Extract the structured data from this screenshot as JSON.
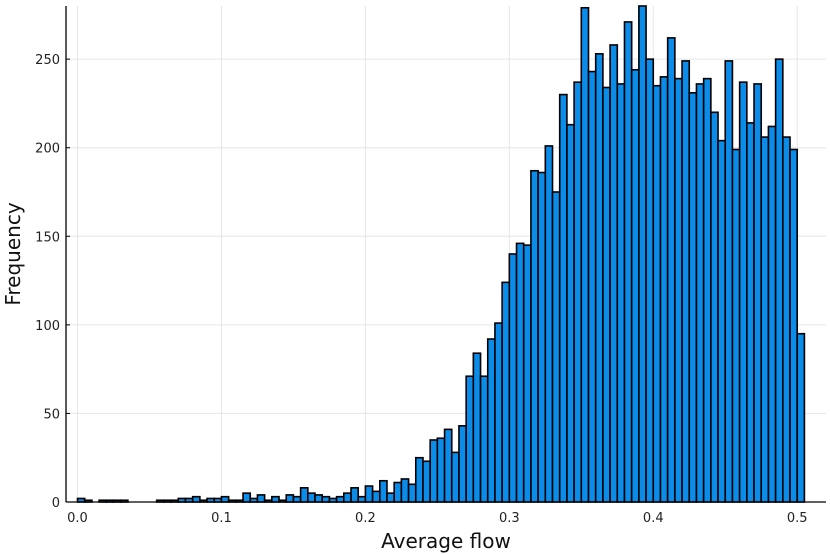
{
  "colors": {
    "bar_fill": "#0b8ce9",
    "bar_edge": "#000000",
    "grid": "#e6e6e6"
  },
  "chart_data": {
    "type": "bar",
    "title": "",
    "xlabel": "Average flow",
    "ylabel": "Frequency",
    "xlim": [
      -0.008,
      0.52
    ],
    "ylim": [
      0,
      280
    ],
    "bin_width": 0.005,
    "grid": true,
    "legend": "none",
    "x_ticks": [
      0.0,
      0.1,
      0.2,
      0.3,
      0.4,
      0.5
    ],
    "x_tick_labels": [
      "0.0",
      "0.1",
      "0.2",
      "0.3",
      "0.4",
      "0.5"
    ],
    "y_ticks": [
      0,
      50,
      100,
      150,
      200,
      250
    ],
    "y_tick_labels": [
      "0",
      "50",
      "100",
      "150",
      "200",
      "250"
    ],
    "bins": [
      {
        "x": 0.0,
        "count": 2
      },
      {
        "x": 0.005,
        "count": 1
      },
      {
        "x": 0.015,
        "count": 1
      },
      {
        "x": 0.02,
        "count": 1
      },
      {
        "x": 0.025,
        "count": 1
      },
      {
        "x": 0.03,
        "count": 1
      },
      {
        "x": 0.055,
        "count": 1
      },
      {
        "x": 0.06,
        "count": 1
      },
      {
        "x": 0.065,
        "count": 1
      },
      {
        "x": 0.07,
        "count": 2
      },
      {
        "x": 0.075,
        "count": 2
      },
      {
        "x": 0.08,
        "count": 3
      },
      {
        "x": 0.085,
        "count": 1
      },
      {
        "x": 0.09,
        "count": 2
      },
      {
        "x": 0.095,
        "count": 2
      },
      {
        "x": 0.1,
        "count": 3
      },
      {
        "x": 0.105,
        "count": 1
      },
      {
        "x": 0.11,
        "count": 1
      },
      {
        "x": 0.115,
        "count": 5
      },
      {
        "x": 0.12,
        "count": 2
      },
      {
        "x": 0.125,
        "count": 4
      },
      {
        "x": 0.13,
        "count": 1
      },
      {
        "x": 0.135,
        "count": 3
      },
      {
        "x": 0.14,
        "count": 1
      },
      {
        "x": 0.145,
        "count": 4
      },
      {
        "x": 0.15,
        "count": 3
      },
      {
        "x": 0.155,
        "count": 8
      },
      {
        "x": 0.16,
        "count": 5
      },
      {
        "x": 0.165,
        "count": 4
      },
      {
        "x": 0.17,
        "count": 3
      },
      {
        "x": 0.175,
        "count": 2
      },
      {
        "x": 0.18,
        "count": 3
      },
      {
        "x": 0.185,
        "count": 5
      },
      {
        "x": 0.19,
        "count": 8
      },
      {
        "x": 0.195,
        "count": 3
      },
      {
        "x": 0.2,
        "count": 9
      },
      {
        "x": 0.205,
        "count": 6
      },
      {
        "x": 0.21,
        "count": 12
      },
      {
        "x": 0.215,
        "count": 5
      },
      {
        "x": 0.22,
        "count": 11
      },
      {
        "x": 0.225,
        "count": 13
      },
      {
        "x": 0.23,
        "count": 10
      },
      {
        "x": 0.235,
        "count": 25
      },
      {
        "x": 0.24,
        "count": 23
      },
      {
        "x": 0.245,
        "count": 35
      },
      {
        "x": 0.25,
        "count": 36
      },
      {
        "x": 0.255,
        "count": 41
      },
      {
        "x": 0.26,
        "count": 28
      },
      {
        "x": 0.265,
        "count": 43
      },
      {
        "x": 0.27,
        "count": 71
      },
      {
        "x": 0.275,
        "count": 84
      },
      {
        "x": 0.28,
        "count": 71
      },
      {
        "x": 0.285,
        "count": 92
      },
      {
        "x": 0.29,
        "count": 101
      },
      {
        "x": 0.295,
        "count": 124
      },
      {
        "x": 0.3,
        "count": 140
      },
      {
        "x": 0.305,
        "count": 146
      },
      {
        "x": 0.31,
        "count": 145
      },
      {
        "x": 0.315,
        "count": 187
      },
      {
        "x": 0.32,
        "count": 186
      },
      {
        "x": 0.325,
        "count": 201
      },
      {
        "x": 0.33,
        "count": 175
      },
      {
        "x": 0.335,
        "count": 230
      },
      {
        "x": 0.34,
        "count": 213
      },
      {
        "x": 0.345,
        "count": 237
      },
      {
        "x": 0.35,
        "count": 279
      },
      {
        "x": 0.355,
        "count": 243
      },
      {
        "x": 0.36,
        "count": 253
      },
      {
        "x": 0.365,
        "count": 234
      },
      {
        "x": 0.37,
        "count": 258
      },
      {
        "x": 0.375,
        "count": 236
      },
      {
        "x": 0.38,
        "count": 271
      },
      {
        "x": 0.385,
        "count": 244
      },
      {
        "x": 0.39,
        "count": 280
      },
      {
        "x": 0.395,
        "count": 250
      },
      {
        "x": 0.4,
        "count": 235
      },
      {
        "x": 0.405,
        "count": 240
      },
      {
        "x": 0.41,
        "count": 262
      },
      {
        "x": 0.415,
        "count": 239
      },
      {
        "x": 0.42,
        "count": 249
      },
      {
        "x": 0.425,
        "count": 231
      },
      {
        "x": 0.43,
        "count": 236
      },
      {
        "x": 0.435,
        "count": 239
      },
      {
        "x": 0.44,
        "count": 220
      },
      {
        "x": 0.445,
        "count": 204
      },
      {
        "x": 0.45,
        "count": 249
      },
      {
        "x": 0.455,
        "count": 199
      },
      {
        "x": 0.46,
        "count": 237
      },
      {
        "x": 0.465,
        "count": 214
      },
      {
        "x": 0.47,
        "count": 236
      },
      {
        "x": 0.475,
        "count": 206
      },
      {
        "x": 0.48,
        "count": 212
      },
      {
        "x": 0.485,
        "count": 250
      },
      {
        "x": 0.49,
        "count": 206
      },
      {
        "x": 0.495,
        "count": 199
      },
      {
        "x": 0.5,
        "count": 95
      }
    ]
  }
}
